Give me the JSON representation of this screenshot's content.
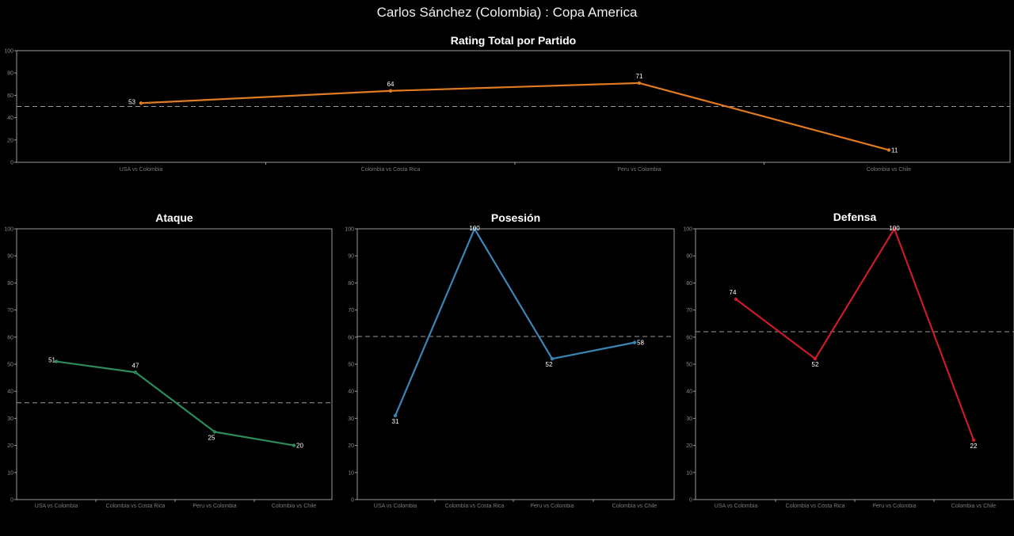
{
  "title": "Carlos Sánchez (Colombia) :  Copa  America",
  "chart_data": [
    {
      "type": "line",
      "title": "Rating Total por Partido",
      "categories": [
        "USA vs Colombia",
        "Colombia vs Costa Rica",
        "Peru vs Colombia",
        "Colombia vs Chile"
      ],
      "values": [
        53,
        64,
        71,
        11
      ],
      "average": 50,
      "color": "#e07b22",
      "ylim": [
        0,
        100
      ],
      "yticks": [
        0,
        20,
        40,
        60,
        80,
        100
      ]
    },
    {
      "type": "line",
      "title": "Ataque",
      "categories": [
        "USA vs Colombia",
        "Colombia vs Costa Rica",
        "Peru vs Colombia",
        "Colombia vs Chile"
      ],
      "values": [
        51,
        47,
        25,
        20
      ],
      "average": 35.75,
      "color": "#2e8b57",
      "ylim": [
        0,
        100
      ],
      "yticks": [
        0,
        10,
        20,
        30,
        40,
        50,
        60,
        70,
        80,
        90,
        100
      ]
    },
    {
      "type": "line",
      "title": "Posesión",
      "categories": [
        "USA vs Colombia",
        "Colombia vs Costa Rica",
        "Peru vs Colombia",
        "Colombia vs Chile"
      ],
      "values": [
        31,
        100,
        52,
        58
      ],
      "average": 60.25,
      "color": "#3a86b8",
      "ylim": [
        0,
        100
      ],
      "yticks": [
        0,
        10,
        20,
        30,
        40,
        50,
        60,
        70,
        80,
        90,
        100
      ]
    },
    {
      "type": "line",
      "title": "Defensa",
      "categories": [
        "USA vs Colombia",
        "Colombia vs Costa Rica",
        "Peru vs Colombia",
        "Colombia vs Chile"
      ],
      "values": [
        74,
        52,
        100,
        22
      ],
      "average": 62,
      "color": "#cc1a2b",
      "ylim": [
        0,
        100
      ],
      "yticks": [
        0,
        10,
        20,
        30,
        40,
        50,
        60,
        70,
        80,
        90,
        100
      ]
    }
  ]
}
